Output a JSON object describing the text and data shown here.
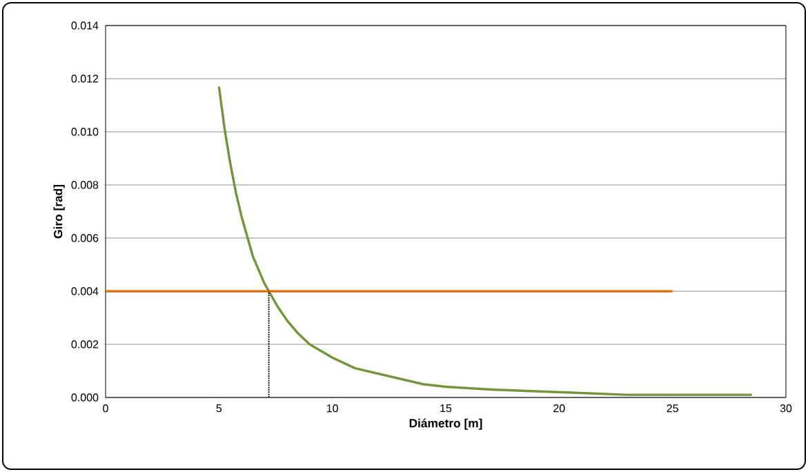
{
  "chart_data": {
    "type": "line",
    "xlabel": "Diámetro [m]",
    "ylabel": "Giro [rad]",
    "xlim": [
      0,
      30
    ],
    "ylim": [
      0,
      0.014
    ],
    "xticks": [
      0,
      5,
      10,
      15,
      20,
      25,
      30
    ],
    "yticks": [
      {
        "value": 0,
        "label": "0.000"
      },
      {
        "value": 0.002,
        "label": "0.002"
      },
      {
        "value": 0.004,
        "label": "0.004"
      },
      {
        "value": 0.006,
        "label": "0.006"
      },
      {
        "value": 0.008,
        "label": "0.008"
      },
      {
        "value": 0.01,
        "label": "0.010"
      },
      {
        "value": 0.012,
        "label": "0.012"
      },
      {
        "value": 0.014,
        "label": "0.014"
      }
    ],
    "grid": "y",
    "series": [
      {
        "color": "#77933c",
        "line_style": "solid",
        "x": [
          5,
          5.25,
          5.5,
          5.75,
          6,
          6.5,
          7,
          7.2,
          7.6,
          8,
          8.5,
          9,
          10,
          11,
          12,
          13,
          14,
          15,
          17,
          20,
          23,
          25,
          28.5
        ],
        "values": [
          0.0117,
          0.0101,
          0.0088,
          0.0077,
          0.0068,
          0.0053,
          0.0043,
          0.004,
          0.0034,
          0.0029,
          0.0024,
          0.002,
          0.0015,
          0.0011,
          0.0009,
          0.0007,
          0.0005,
          0.0004,
          0.0003,
          0.0002,
          0.0001,
          0.0001,
          0.0001
        ]
      },
      {
        "color": "#e46c0a",
        "line_style": "solid",
        "x": [
          0,
          25
        ],
        "values": [
          0.004,
          0.004
        ]
      },
      {
        "color": "#000000",
        "line_style": "dotted",
        "x": [
          7.2,
          7.2
        ],
        "values": [
          0,
          0.004
        ]
      }
    ]
  }
}
